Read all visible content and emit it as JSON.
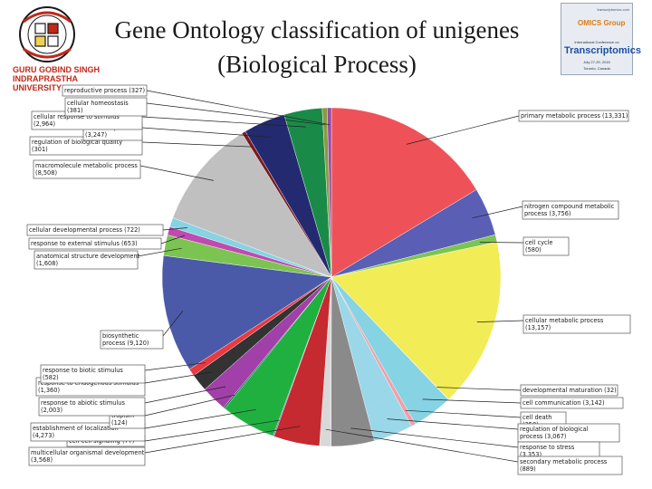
{
  "slide": {
    "title_line1": "Gene Ontology classification of unigenes",
    "title_line2": "(Biological Process)",
    "left_logo_caption": [
      "GURU GOBIND SINGH",
      "INDRAPRASTHA",
      "UNIVERSITY"
    ],
    "right_logo": {
      "top_line": "transcriptomics.com",
      "brand": "OMICS Group",
      "line1": "International Conference on",
      "line2": "Transcriptomics",
      "line3": "July 27-29, 2015",
      "line4": "Toronto, Canada"
    }
  },
  "colors": {
    "leader_line": "#222222",
    "label_border": "#555555"
  },
  "chart_data": {
    "type": "pie",
    "title": "Gene Ontology classification of unigenes",
    "subtitle": "(Biological Process)",
    "legend": "none",
    "slices": [
      {
        "label": "primary metabolic process (13,331)",
        "value": 13331,
        "color": "#ee5258",
        "side": "right"
      },
      {
        "label": "nitrogen compound metabolic process (3,756)",
        "value": 3756,
        "color": "#5a5fb5",
        "side": "right"
      },
      {
        "label": "cell cycle (580)",
        "value": 580,
        "color": "#7cc452",
        "side": "right"
      },
      {
        "label": "cellular metabolic process (13,157)",
        "value": 13157,
        "color": "#f2ec56",
        "side": "right"
      },
      {
        "label": "developmental maturation (32)",
        "value": 32,
        "color": "#f2ec56",
        "side": "right"
      },
      {
        "label": "cell communication (3,142)",
        "value": 3142,
        "color": "#86d3e4",
        "side": "right"
      },
      {
        "label": "cell death (350)",
        "value": 350,
        "color": "#f0a0a8",
        "side": "right"
      },
      {
        "label": "regulation of biological process (3,067)",
        "value": 3067,
        "color": "#9ad7e8",
        "side": "right"
      },
      {
        "label": "response to stress (3,353)",
        "value": 3353,
        "color": "#8a8a8a",
        "side": "right"
      },
      {
        "label": "secondary metabolic process (889)",
        "value": 889,
        "color": "#d8d8d8",
        "side": "right"
      },
      {
        "label": "multicellular organismal development (3,568)",
        "value": 3568,
        "color": "#c42a30",
        "side": "left"
      },
      {
        "label": "cell-cell signaling (77)",
        "value": 77,
        "color": "#2a4ca0",
        "side": "left"
      },
      {
        "label": "establishment of localization (4,273)",
        "value": 4273,
        "color": "#20b040",
        "side": "left"
      },
      {
        "label": "tropism (124)",
        "value": 124,
        "color": "#1a6a4a",
        "side": "left"
      },
      {
        "label": "response to abiotic stimulus (2,003)",
        "value": 2003,
        "color": "#a040a8",
        "side": "left"
      },
      {
        "label": "response to endogenous stimulus (1,360)",
        "value": 1360,
        "color": "#333333",
        "side": "left"
      },
      {
        "label": "response to biotic stimulus (582)",
        "value": 582,
        "color": "#e83a40",
        "side": "left"
      },
      {
        "label": "biosynthetic process (9,120)",
        "value": 9120,
        "color": "#4a5aa8",
        "side": "left"
      },
      {
        "label": "anatomical structure development (1,608)",
        "value": 1608,
        "color": "#7cc452",
        "side": "left"
      },
      {
        "label": "response to external stimulus (653)",
        "value": 653,
        "color": "#c04ab0",
        "side": "left"
      },
      {
        "label": "cellular developmental process (722)",
        "value": 722,
        "color": "#86d3e4",
        "side": "left"
      },
      {
        "label": "macromolecule metabolic process (8,508)",
        "value": 8508,
        "color": "#c0c0c0",
        "side": "left"
      },
      {
        "label": "regulation of biological quality (301)",
        "value": 301,
        "color": "#7a1a20",
        "side": "left"
      },
      {
        "label": "catabolic process (3,247)",
        "value": 3247,
        "color": "#242a70",
        "side": "left"
      },
      {
        "label": "cellular response to stimulus (2,964)",
        "value": 2964,
        "color": "#1a8a48",
        "side": "left"
      },
      {
        "label": "cellular homeostasis (381)",
        "value": 381,
        "color": "#8a9a40",
        "side": "left"
      },
      {
        "label": "reproductive process (327)",
        "value": 327,
        "color": "#9a4aa8",
        "side": "left"
      }
    ]
  }
}
